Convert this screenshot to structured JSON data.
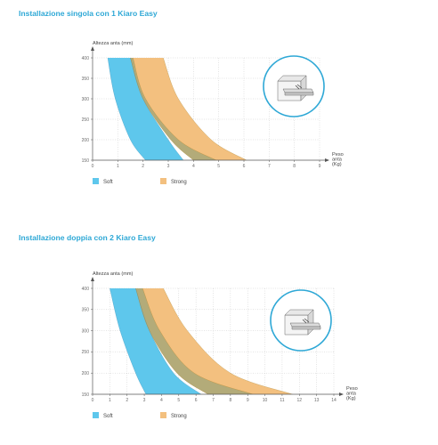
{
  "sections": [
    {
      "title": "Installazione singola con 1 Kiaro Easy"
    },
    {
      "title": "Installazione doppia con 2 Kiaro Easy"
    }
  ],
  "colors": {
    "soft": "#5ec7ec",
    "strong": "#f3c07f",
    "overlap": "#b3ab79",
    "accent": "#2ea8d6"
  },
  "icons": [
    "drawer-cabinet-icon"
  ],
  "chart_data": [
    {
      "type": "area",
      "title": "",
      "ylabel": "Altezza anta (mm)",
      "xlabel": "Peso anta (Kg)",
      "xlabel_lines": [
        "Peso",
        "anta",
        "(Kg)"
      ],
      "xlim": [
        0,
        9
      ],
      "ylim": [
        150,
        400
      ],
      "xticks": [
        0,
        1,
        2,
        3,
        4,
        5,
        6,
        7,
        8,
        9
      ],
      "yticks": [
        150,
        200,
        250,
        300,
        350,
        400
      ],
      "legend_placement": "bottom-left",
      "series": [
        {
          "name": "Soft",
          "color_key": "soft",
          "min": [
            [
              0.6,
              400
            ],
            [
              0.9,
              300
            ],
            [
              1.5,
              200
            ],
            [
              2.1,
              150
            ]
          ],
          "max": [
            [
              1.5,
              400
            ],
            [
              2.0,
              300
            ],
            [
              3.0,
              200
            ],
            [
              3.6,
              150
            ]
          ]
        },
        {
          "name": "Strong",
          "color_key": "strong",
          "min": [
            [
              1.5,
              400
            ],
            [
              2.0,
              300
            ],
            [
              3.1,
              200
            ],
            [
              4.0,
              150
            ]
          ],
          "max": [
            [
              2.8,
              400
            ],
            [
              3.4,
              300
            ],
            [
              4.7,
              200
            ],
            [
              6.1,
              150
            ]
          ]
        }
      ],
      "overlap_boundaries": [
        [
          [
            1.6,
            400
          ],
          [
            2.1,
            300
          ],
          [
            3.4,
            200
          ],
          [
            4.9,
            150
          ]
        ]
      ]
    },
    {
      "type": "area",
      "title": "",
      "ylabel": "Altezza anta (mm)",
      "xlabel": "Peso anta (Kg)",
      "xlabel_lines": [
        "Peso",
        "anta",
        "(Kg)"
      ],
      "xlim": [
        0,
        14
      ],
      "ylim": [
        150,
        400
      ],
      "xticks": [
        0,
        1,
        2,
        3,
        4,
        5,
        6,
        7,
        8,
        9,
        10,
        11,
        12,
        13,
        14
      ],
      "yticks": [
        150,
        200,
        250,
        300,
        350,
        400
      ],
      "legend_placement": "bottom-left",
      "series": [
        {
          "name": "Soft",
          "color_key": "soft",
          "min": [
            [
              1.0,
              400
            ],
            [
              1.6,
              300
            ],
            [
              2.5,
              200
            ],
            [
              3.1,
              150
            ]
          ],
          "max": [
            [
              2.5,
              400
            ],
            [
              3.3,
              300
            ],
            [
              4.7,
              200
            ],
            [
              6.3,
              150
            ]
          ]
        },
        {
          "name": "Strong",
          "color_key": "strong",
          "min": [
            [
              2.5,
              400
            ],
            [
              3.3,
              300
            ],
            [
              4.9,
              200
            ],
            [
              6.7,
              150
            ]
          ],
          "max": [
            [
              4.1,
              400
            ],
            [
              5.5,
              300
            ],
            [
              8.0,
              200
            ],
            [
              11.6,
              150
            ]
          ]
        }
      ],
      "overlap_boundaries": [
        [
          [
            2.9,
            400
          ],
          [
            3.9,
            300
          ],
          [
            5.9,
            200
          ],
          [
            9.3,
            150
          ]
        ]
      ]
    }
  ]
}
